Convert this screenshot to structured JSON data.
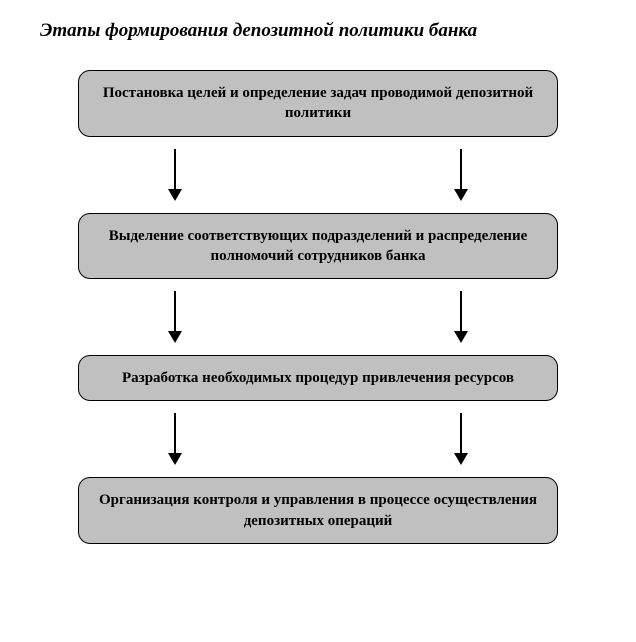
{
  "diagram": {
    "type": "flowchart",
    "title": "Этапы формирования депозитной политики банка",
    "title_fontsize": 19,
    "title_style": "italic bold",
    "background_color": "#ffffff",
    "node_fill": "#c0c0c0",
    "node_border_color": "#000000",
    "node_border_radius": 12,
    "node_fontsize": 15,
    "node_fontweight": "bold",
    "arrow_color": "#000000",
    "arrow_line_length": 40,
    "arrow_head_size": 12,
    "arrows_per_gap": 2,
    "nodes": [
      {
        "id": "n1",
        "label": "Постановка целей и определение задач проводимой депозитной политики"
      },
      {
        "id": "n2",
        "label": "Выделение соответствующих подразделений и распределение полномочий сотрудников банка"
      },
      {
        "id": "n3",
        "label": "Разработка необходимых процедур привлечения ресурсов"
      },
      {
        "id": "n4",
        "label": "Организация контроля и управления в процессе осуществления депозитных операций"
      }
    ],
    "edges": [
      {
        "from": "n1",
        "to": "n2"
      },
      {
        "from": "n2",
        "to": "n3"
      },
      {
        "from": "n3",
        "to": "n4"
      }
    ]
  }
}
